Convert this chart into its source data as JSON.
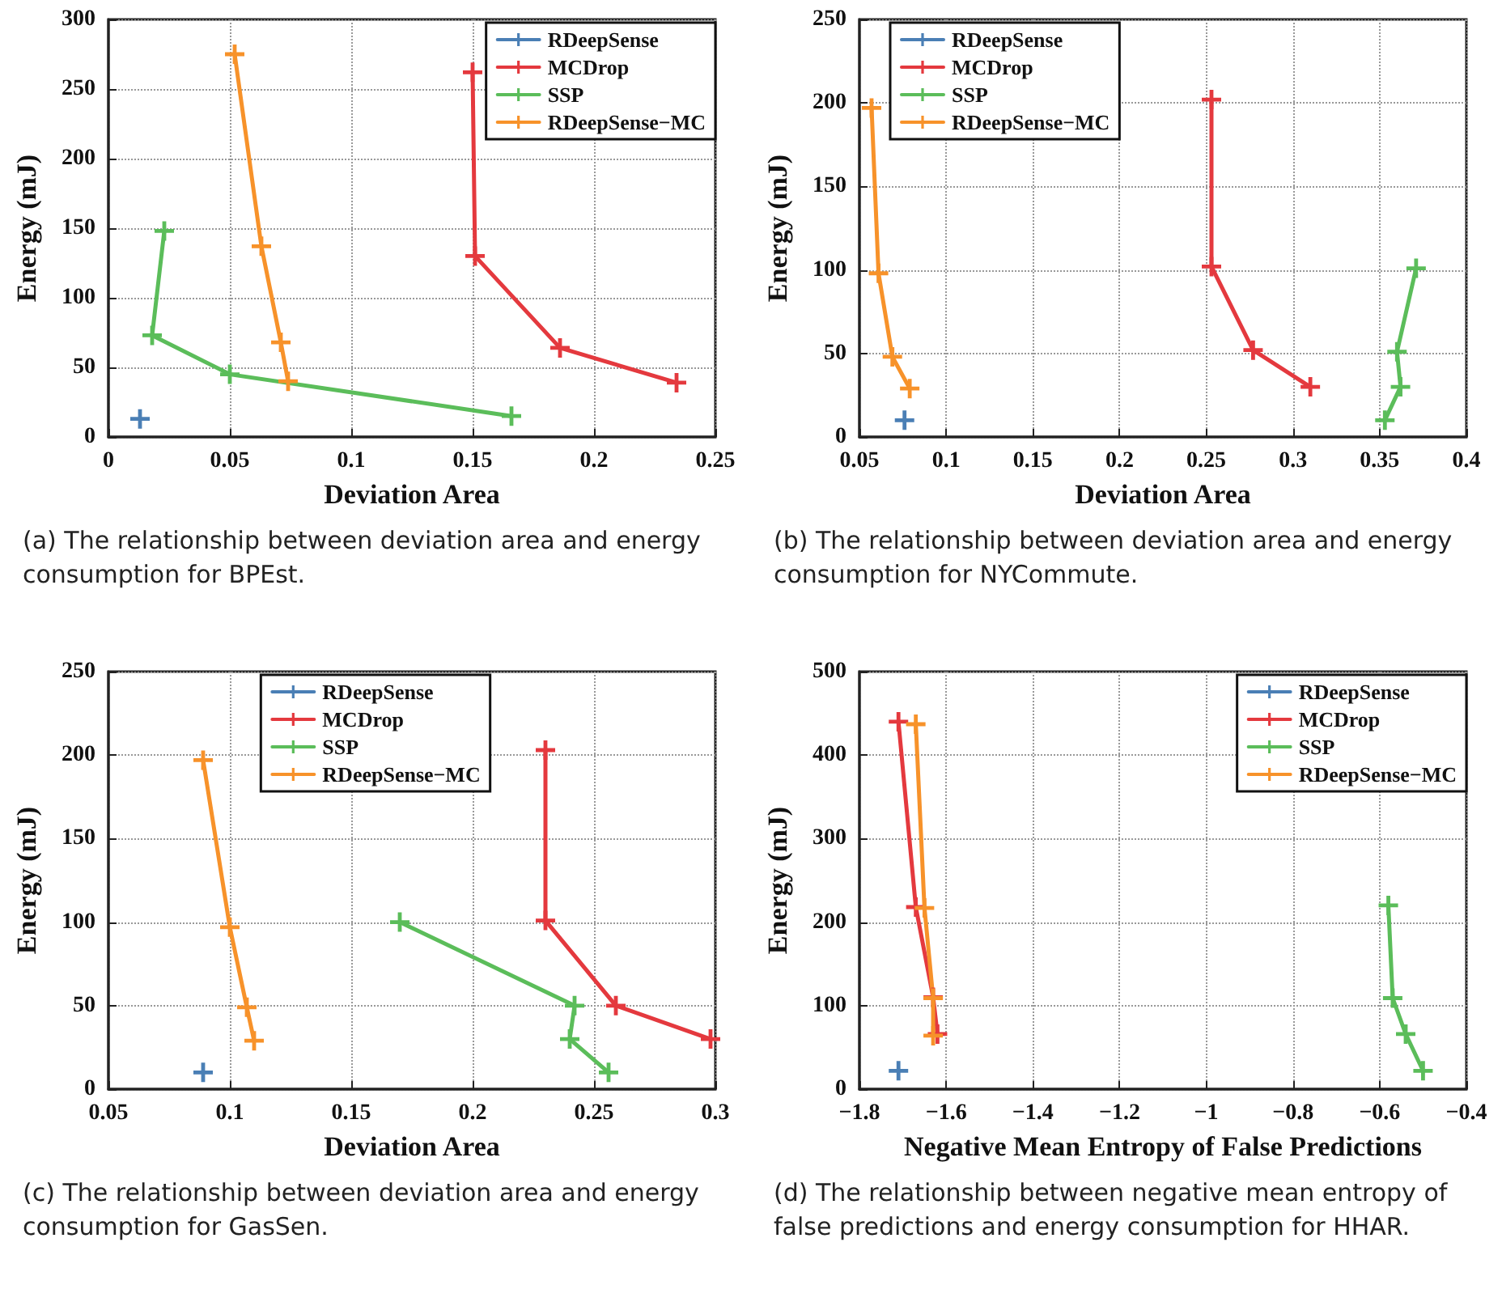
{
  "chart_data": [
    {
      "type": "line",
      "xlabel": "Deviation Area",
      "ylabel": "Energy (mJ)",
      "annotations": [
        "(a) The relationship between deviation area and energy consumption for BPEst."
      ],
      "xlim": [
        0,
        0.25
      ],
      "xticks": [
        0,
        0.05,
        0.1,
        0.15,
        0.2,
        0.25
      ],
      "ylim": [
        0,
        300
      ],
      "yticks": [
        0,
        50,
        100,
        150,
        200,
        250,
        300
      ],
      "grid": true,
      "legend": "top right",
      "marker": "cross",
      "line_style": "solid",
      "series": [
        {
          "name": "RDeepSense",
          "color": "#4a7fb5",
          "x": [
            0.013
          ],
          "values": [
            13
          ]
        },
        {
          "name": "MCDrop",
          "color": "#e4393e",
          "x": [
            0.15,
            0.151,
            0.186,
            0.234
          ],
          "values": [
            262,
            130,
            64,
            39
          ]
        },
        {
          "name": "SSP",
          "color": "#5bbd5a",
          "x": [
            0.023,
            0.018,
            0.05,
            0.166
          ],
          "values": [
            148,
            73,
            45,
            15
          ]
        },
        {
          "name": "RDeepSense−MC",
          "color": "#f7922a",
          "x": [
            0.052,
            0.063,
            0.071,
            0.074
          ],
          "values": [
            275,
            137,
            68,
            40
          ]
        }
      ]
    },
    {
      "type": "line",
      "xlabel": "Deviation Area",
      "ylabel": "Energy (mJ)",
      "annotations": [
        "(b) The relationship between deviation area and energy consumption for NYCommute."
      ],
      "xlim": [
        0.05,
        0.4
      ],
      "xticks": [
        0.05,
        0.1,
        0.15,
        0.2,
        0.25,
        0.3,
        0.35,
        0.4
      ],
      "ylim": [
        0,
        250
      ],
      "yticks": [
        0,
        50,
        100,
        150,
        200,
        250
      ],
      "grid": true,
      "legend": "top left",
      "marker": "cross",
      "line_style": "solid",
      "series": [
        {
          "name": "RDeepSense",
          "color": "#4a7fb5",
          "x": [
            0.076
          ],
          "values": [
            10
          ]
        },
        {
          "name": "MCDrop",
          "color": "#e4393e",
          "x": [
            0.253,
            0.253,
            0.277,
            0.31
          ],
          "values": [
            202,
            102,
            52,
            30
          ]
        },
        {
          "name": "SSP",
          "color": "#5bbd5a",
          "x": [
            0.371,
            0.36,
            0.362,
            0.353
          ],
          "values": [
            101,
            51,
            30,
            10
          ]
        },
        {
          "name": "RDeepSense−MC",
          "color": "#f7922a",
          "x": [
            0.057,
            0.061,
            0.069,
            0.079
          ],
          "values": [
            197,
            98,
            48,
            29
          ]
        }
      ]
    },
    {
      "type": "line",
      "xlabel": "Deviation Area",
      "ylabel": "Energy (mJ)",
      "annotations": [
        "(c) The relationship between deviation area and energy consumption for GasSen."
      ],
      "xlim": [
        0.05,
        0.3
      ],
      "xticks": [
        0.05,
        0.1,
        0.15,
        0.2,
        0.25,
        0.3
      ],
      "ylim": [
        0,
        250
      ],
      "yticks": [
        0,
        50,
        100,
        150,
        200,
        250
      ],
      "grid": true,
      "legend": "top",
      "marker": "cross",
      "line_style": "solid",
      "series": [
        {
          "name": "RDeepSense",
          "color": "#4a7fb5",
          "x": [
            0.089
          ],
          "values": [
            10
          ]
        },
        {
          "name": "MCDrop",
          "color": "#e4393e",
          "x": [
            0.23,
            0.23,
            0.259,
            0.298
          ],
          "values": [
            203,
            101,
            50,
            30
          ]
        },
        {
          "name": "SSP",
          "color": "#5bbd5a",
          "x": [
            0.17,
            0.242,
            0.24,
            0.256
          ],
          "values": [
            100,
            50,
            30,
            10
          ]
        },
        {
          "name": "RDeepSense−MC",
          "color": "#f7922a",
          "x": [
            0.089,
            0.1,
            0.107,
            0.11
          ],
          "values": [
            197,
            97,
            49,
            29
          ]
        }
      ]
    },
    {
      "type": "line",
      "xlabel": "Negative Mean Entropy of False Predictions",
      "ylabel": "Energy (mJ)",
      "annotations": [
        "(d) The relationship between negative mean entropy of false predictions and energy consumption for HHAR."
      ],
      "xlim": [
        -1.8,
        -0.4
      ],
      "xticks": [
        {
          "value": -1.8,
          "label": "−1.8"
        },
        {
          "value": -1.6,
          "label": "−1.6"
        },
        {
          "value": -1.4,
          "label": "−1.4"
        },
        {
          "value": -1.2,
          "label": "−1.2"
        },
        {
          "value": -1,
          "label": "−1"
        },
        {
          "value": -0.8,
          "label": "−0.8"
        },
        {
          "value": -0.6,
          "label": "−0.6"
        },
        {
          "value": -0.4,
          "label": "−0.4"
        }
      ],
      "ylim": [
        0,
        500
      ],
      "yticks": [
        0,
        100,
        200,
        300,
        400,
        500
      ],
      "grid": true,
      "legend": "top right",
      "marker": "cross",
      "line_style": "solid",
      "series": [
        {
          "name": "RDeepSense",
          "color": "#4a7fb5",
          "x": [
            -1.71
          ],
          "values": [
            22
          ]
        },
        {
          "name": "MCDrop",
          "color": "#e4393e",
          "x": [
            -1.71,
            -1.67,
            -1.63,
            -1.62
          ],
          "values": [
            440,
            218,
            110,
            66
          ]
        },
        {
          "name": "SSP",
          "color": "#5bbd5a",
          "x": [
            -0.58,
            -0.57,
            -0.54,
            -0.5
          ],
          "values": [
            220,
            109,
            66,
            22
          ]
        },
        {
          "name": "RDeepSense−MC",
          "color": "#f7922a",
          "x": [
            -1.67,
            -1.65,
            -1.63,
            -1.63
          ],
          "values": [
            437,
            217,
            109,
            64
          ]
        }
      ]
    }
  ]
}
